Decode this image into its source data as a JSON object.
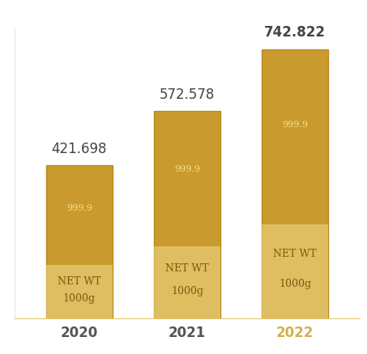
{
  "chart_data": {
    "type": "bar",
    "categories": [
      "2020",
      "2021",
      "2022"
    ],
    "values": [
      421.698,
      572.578,
      742.822
    ],
    "color": "#c99a2e",
    "ylim": [
      0,
      800
    ],
    "yticks": [],
    "data_labels": true,
    "tick_labels": "x",
    "grid": false,
    "annotations": [
      "999.9",
      "NET WT",
      "1000g"
    ]
  }
}
